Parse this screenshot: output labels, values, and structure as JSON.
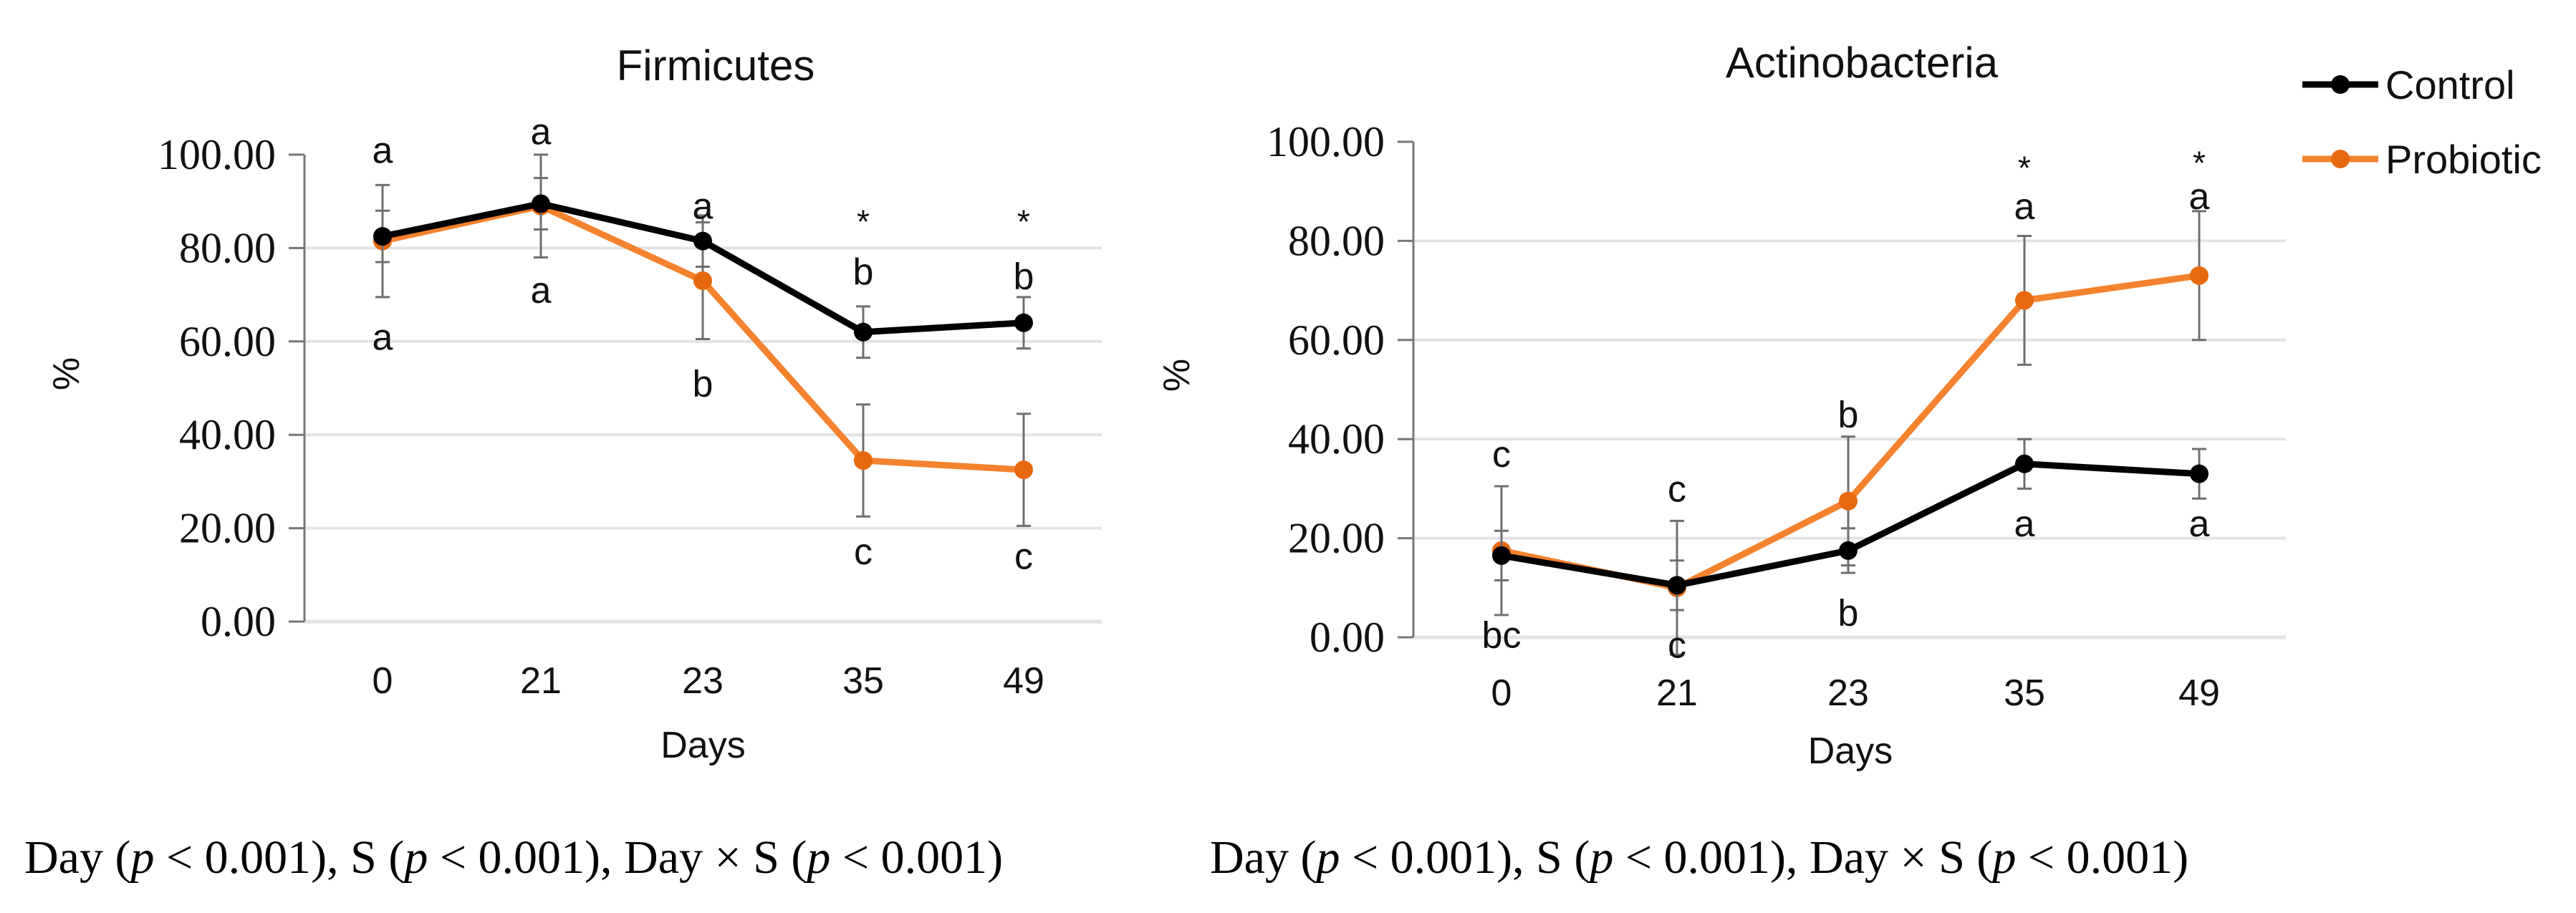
{
  "legend": {
    "items": [
      {
        "label": "Control",
        "color": "#000000"
      },
      {
        "label": "Probiotic",
        "color": "#f4822e"
      }
    ]
  },
  "captions": [
    {
      "parts": [
        "Day (",
        "p",
        " < 0.001), S (",
        "p",
        " < 0.001), Day × S (",
        "p",
        " < 0.001)"
      ]
    },
    {
      "parts": [
        "Day (",
        "p",
        " < 0.001), S (",
        "p",
        " < 0.001), Day × S (",
        "p",
        " < 0.001)"
      ]
    }
  ],
  "chart_data": [
    {
      "type": "line",
      "title": "Firmicutes",
      "xlabel": "Days",
      "ylabel": "%",
      "categories": [
        "0",
        "21",
        "23",
        "35",
        "49"
      ],
      "ylim": [
        0,
        100
      ],
      "yticks": [
        "0.00",
        "20.00",
        "40.00",
        "60.00",
        "80.00",
        "100.00"
      ],
      "grid": true,
      "series": [
        {
          "name": "Control",
          "values": [
            82.5,
            89.5,
            81.5,
            62,
            64
          ],
          "errors": [
            5.5,
            5.5,
            5.5,
            5.5,
            5.5
          ]
        },
        {
          "name": "Probiotic",
          "values": [
            81.5,
            89,
            73,
            34.5,
            32.5
          ],
          "errors": [
            12,
            11,
            12.5,
            12,
            12
          ]
        }
      ],
      "annotations": [
        {
          "x": "0",
          "y": 101,
          "text": "a"
        },
        {
          "x": "0",
          "y": 61,
          "text": "a"
        },
        {
          "x": "21",
          "y": 105,
          "text": "a"
        },
        {
          "x": "21",
          "y": 71,
          "text": "a"
        },
        {
          "x": "23",
          "y": 89,
          "text": "a"
        },
        {
          "x": "23",
          "y": 51,
          "text": "b"
        },
        {
          "x": "35",
          "y": 86,
          "text": "*"
        },
        {
          "x": "35",
          "y": 75,
          "text": "b"
        },
        {
          "x": "35",
          "y": 15,
          "text": "c"
        },
        {
          "x": "49",
          "y": 86,
          "text": "*"
        },
        {
          "x": "49",
          "y": 74,
          "text": "b"
        },
        {
          "x": "49",
          "y": 14,
          "text": "c"
        }
      ]
    },
    {
      "type": "line",
      "title": "Actinobacteria",
      "xlabel": "Days",
      "ylabel": "%",
      "categories": [
        "0",
        "21",
        "23",
        "35",
        "49"
      ],
      "ylim": [
        0,
        100
      ],
      "yticks": [
        "0.00",
        "20.00",
        "40.00",
        "60.00",
        "80.00",
        "100.00"
      ],
      "grid": true,
      "series": [
        {
          "name": "Control",
          "values": [
            16.5,
            10.5,
            17.5,
            35,
            33
          ],
          "errors": [
            5,
            5,
            4.5,
            5,
            5
          ]
        },
        {
          "name": "Probiotic",
          "values": [
            17.5,
            10,
            27.5,
            68,
            73
          ],
          "errors": [
            13,
            13.5,
            13,
            13,
            13
          ]
        }
      ],
      "annotations": [
        {
          "x": "0",
          "y": 37,
          "text": "c"
        },
        {
          "x": "0",
          "y": 0.5,
          "text": "bc"
        },
        {
          "x": "21",
          "y": 30,
          "text": "c"
        },
        {
          "x": "21",
          "y": -1.5,
          "text": "c"
        },
        {
          "x": "23",
          "y": 45,
          "text": "b"
        },
        {
          "x": "23",
          "y": 5,
          "text": "b"
        },
        {
          "x": "35",
          "y": 95,
          "text": "*"
        },
        {
          "x": "35",
          "y": 87,
          "text": "a"
        },
        {
          "x": "35",
          "y": 23,
          "text": "a"
        },
        {
          "x": "49",
          "y": 96,
          "text": "*"
        },
        {
          "x": "49",
          "y": 89,
          "text": "a"
        },
        {
          "x": "49",
          "y": 23,
          "text": "a"
        }
      ]
    }
  ]
}
